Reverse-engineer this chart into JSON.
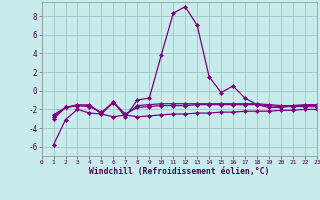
{
  "xlabel": "Windchill (Refroidissement éolien,°C)",
  "bg_color": "#c8ecec",
  "grid_color": "#a0c8c8",
  "line_color": "#800080",
  "xlim": [
    0,
    23
  ],
  "ylim": [
    -7,
    9.5
  ],
  "xticks": [
    0,
    1,
    2,
    3,
    4,
    5,
    6,
    7,
    8,
    9,
    10,
    11,
    12,
    13,
    14,
    15,
    16,
    17,
    18,
    19,
    20,
    21,
    22,
    23
  ],
  "yticks": [
    -6,
    -4,
    -2,
    0,
    2,
    4,
    6,
    8
  ],
  "series": [
    [
      null,
      -5.8,
      -3.1,
      -2.0,
      -2.4,
      -2.5,
      -2.8,
      -2.6,
      -2.8,
      -2.7,
      -2.6,
      -2.5,
      -2.5,
      -2.4,
      -2.4,
      -2.3,
      -2.3,
      -2.2,
      -2.2,
      -2.2,
      -2.1,
      -2.1,
      -2.0,
      -2.0
    ],
    [
      null,
      -3.0,
      -1.8,
      -1.6,
      -1.5,
      -2.5,
      -1.2,
      -2.8,
      -1.0,
      -0.8,
      3.8,
      8.3,
      9.0,
      7.0,
      1.5,
      -0.2,
      0.5,
      -0.8,
      -1.5,
      -1.8,
      -1.8,
      -1.6,
      -1.5,
      -1.5
    ],
    [
      null,
      -2.8,
      -1.8,
      -1.5,
      -1.6,
      -2.4,
      -1.2,
      -2.6,
      -1.6,
      -1.5,
      -1.4,
      -1.4,
      -1.4,
      -1.4,
      -1.4,
      -1.4,
      -1.4,
      -1.4,
      -1.4,
      -1.5,
      -1.6,
      -1.6,
      -1.6,
      -1.6
    ],
    [
      null,
      -2.6,
      -1.8,
      -1.6,
      -1.7,
      -2.3,
      -1.3,
      -2.5,
      -1.8,
      -1.7,
      -1.6,
      -1.6,
      -1.6,
      -1.5,
      -1.5,
      -1.5,
      -1.5,
      -1.5,
      -1.5,
      -1.6,
      -1.7,
      -1.7,
      -1.7,
      -1.7
    ]
  ],
  "marker": "D",
  "markersize": 2.2,
  "linewidth": 0.9,
  "x_tick_fontsize": 4.5,
  "y_tick_fontsize": 5.5,
  "label_fontsize": 5.8
}
